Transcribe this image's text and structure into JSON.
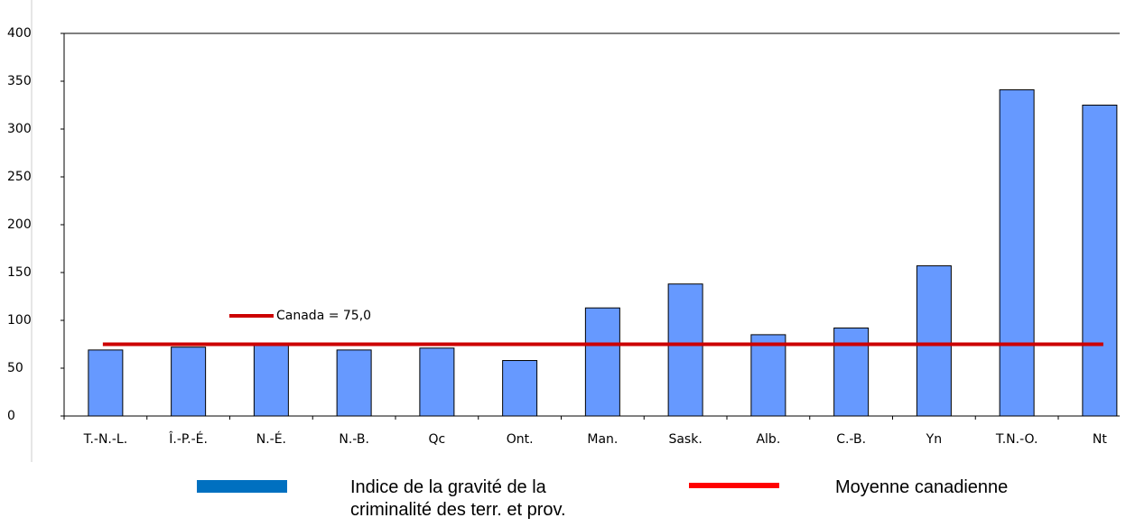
{
  "chart_data": {
    "type": "bar",
    "categories": [
      "T.-N.-L.",
      "Î.-P.-É.",
      "N.-É.",
      "N.-B.",
      "Qc",
      "Ont.",
      "Man.",
      "Sask.",
      "Alb.",
      "C.-B.",
      "Yn",
      "T.N.-O.",
      "Nt"
    ],
    "series": [
      {
        "name": "Indice de la gravité de la criminalité des terr. et prov.",
        "color": "#6699ff",
        "legend_color": "#0070c0",
        "values": [
          69,
          72,
          76,
          69,
          71,
          58,
          113,
          138,
          85,
          92,
          157,
          341,
          325
        ]
      }
    ],
    "reference": {
      "name": "Moyenne canadienne",
      "value": 75,
      "color": "#cc0000",
      "annotation": "Canada = 75,0",
      "legend_color": "#ff0000"
    },
    "ylim": [
      0,
      400
    ],
    "yticks": [
      0,
      50,
      100,
      150,
      200,
      250,
      300,
      350,
      400
    ]
  }
}
